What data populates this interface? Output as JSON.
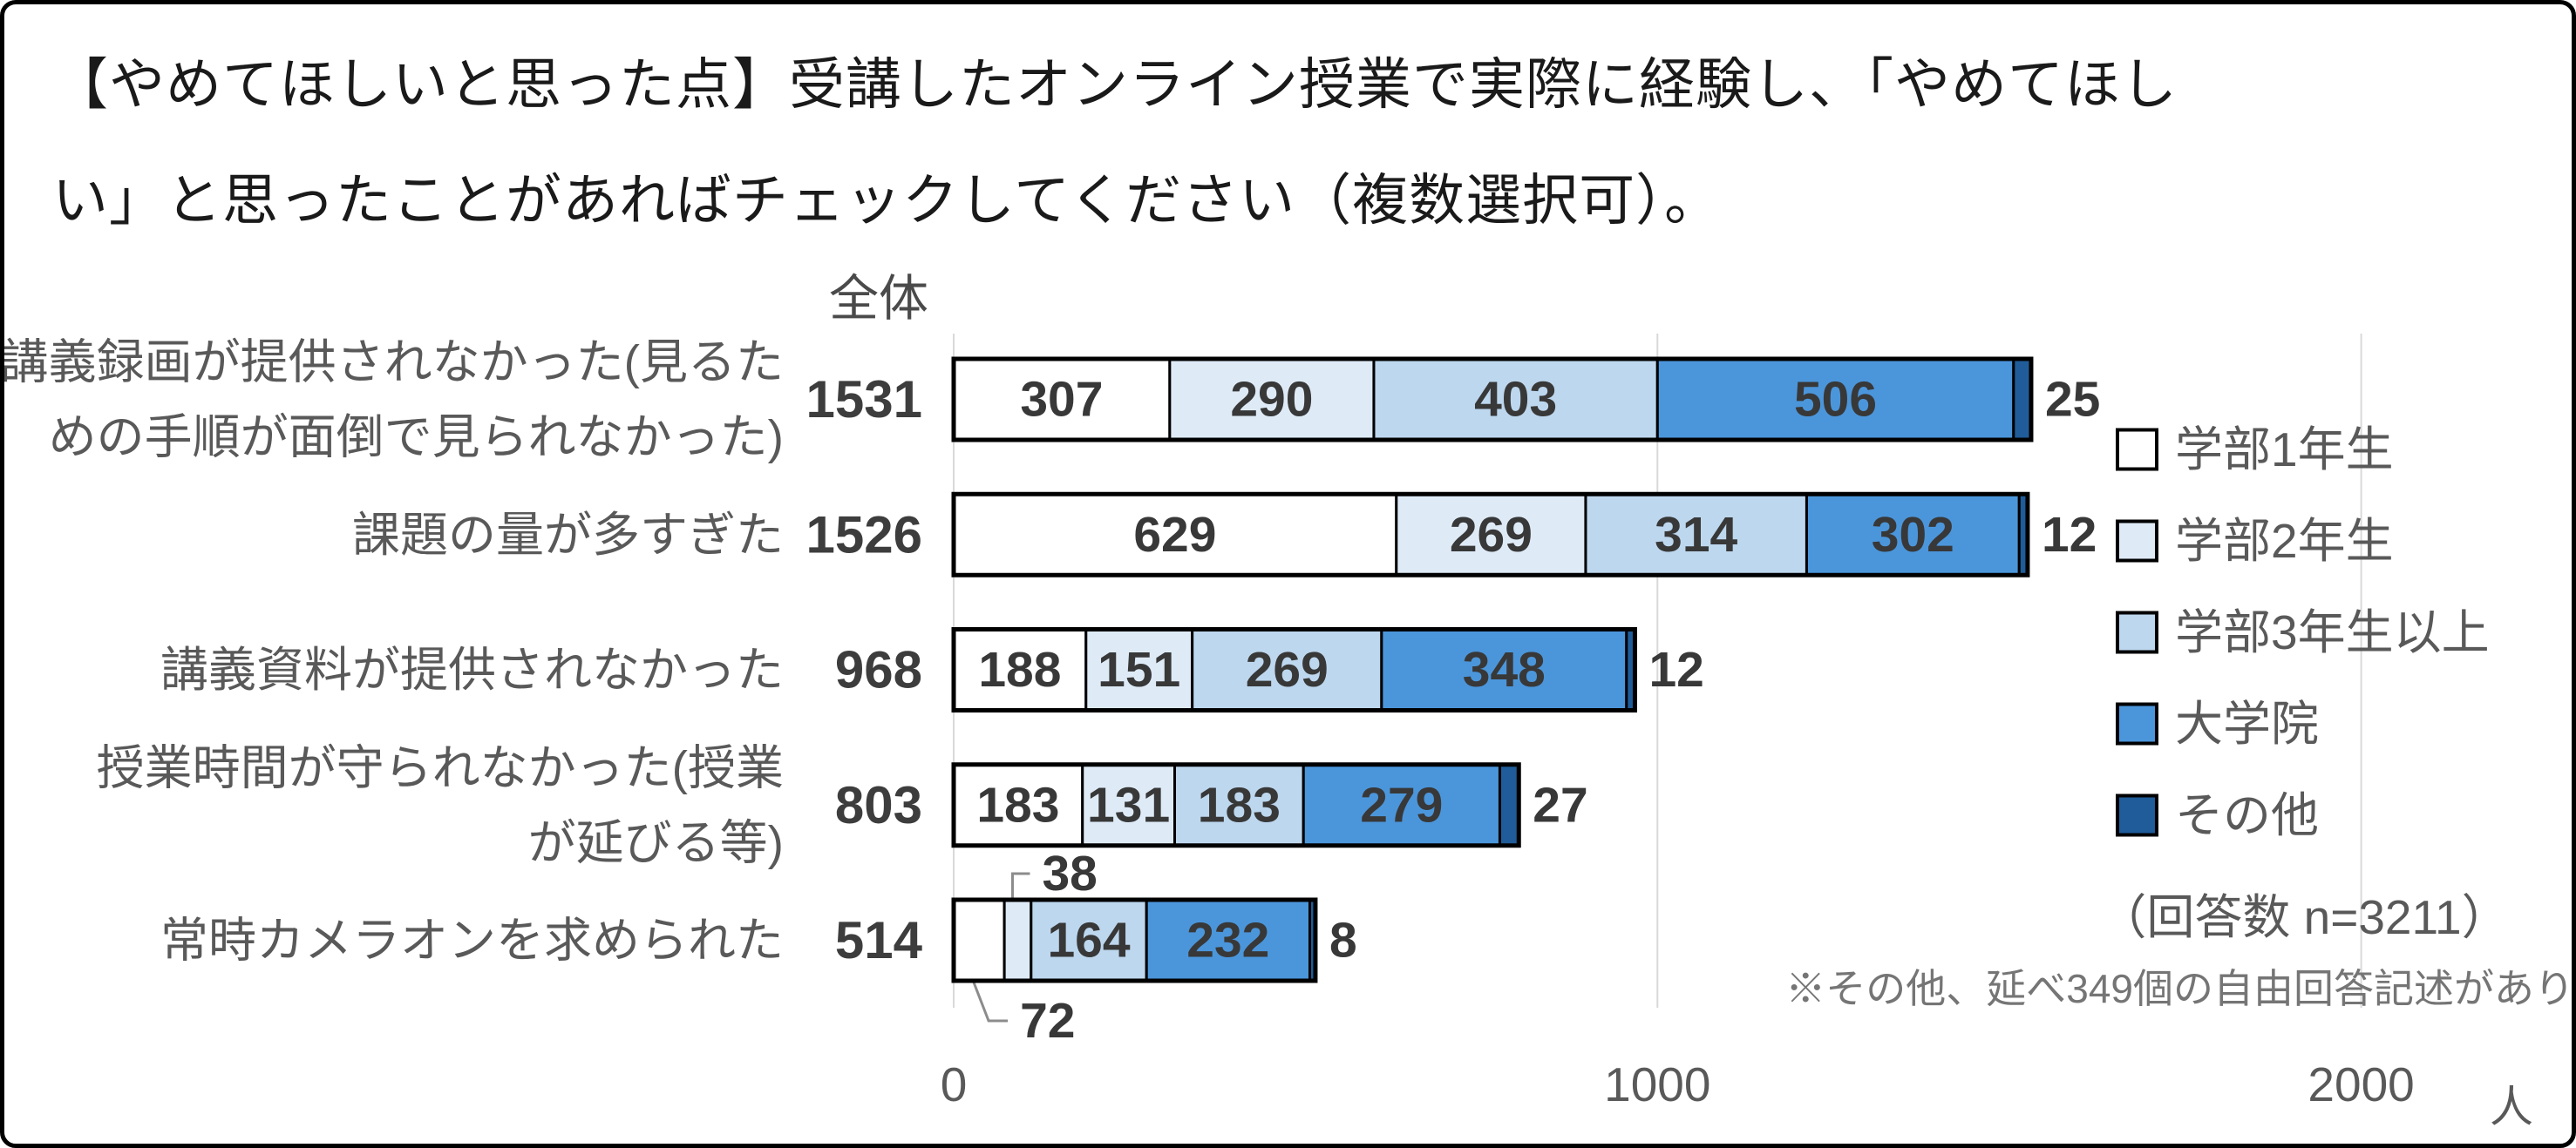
{
  "figure": {
    "title_lines": [
      "【やめてほしいと思った点】受講したオンライン授業で実際に経験し、「やめてほし",
      "い」と思ったことがあればチェックしてください（複数選択可）。"
    ]
  },
  "colors": {
    "title": "#1a1a1a",
    "background": "#FFFFFF",
    "figure_border": "#000000",
    "bar_border": "#000000",
    "gridline": "#D9D9D9",
    "leader_line": "#8C8C8C",
    "category_label": "#595959",
    "total_header": "#4A4A4A",
    "total_label": "#3D3D3D",
    "value_label": "#383838",
    "axis_text": "#595959",
    "legend_text": "#595959",
    "annotation_text": "#595959",
    "footnote_text": "#757575"
  },
  "chart_data": {
    "type": "bar",
    "orientation": "horizontal",
    "stacked": true,
    "grid": true,
    "legend_position": "right",
    "total_column_header": "全体",
    "series": [
      {
        "name": "学部1年生",
        "color": "#FFFFFF"
      },
      {
        "name": "学部2年生",
        "color": "#DEEBF7"
      },
      {
        "name": "学部3年生以上",
        "color": "#BDD7EE"
      },
      {
        "name": "大学院",
        "color": "#4B96DB"
      },
      {
        "name": "その他",
        "color": "#1F5C99"
      }
    ],
    "categories": [
      {
        "label_lines": [
          "講義録画が提供されなかった(見るた",
          "めの手順が面倒で見られなかった)"
        ],
        "total": 1531,
        "values": [
          307,
          290,
          403,
          506,
          25
        ]
      },
      {
        "label_lines": [
          "課題の量が多すぎた"
        ],
        "total": 1526,
        "values": [
          629,
          269,
          314,
          302,
          12
        ]
      },
      {
        "label_lines": [
          "講義資料が提供されなかった"
        ],
        "total": 968,
        "values": [
          188,
          151,
          269,
          348,
          12
        ]
      },
      {
        "label_lines": [
          "授業時間が守られなかった(授業",
          "が延びる等)"
        ],
        "total": 803,
        "values": [
          183,
          131,
          183,
          279,
          27
        ]
      },
      {
        "label_lines": [
          "常時カメラオンを求められた"
        ],
        "total": 514,
        "values": [
          72,
          38,
          164,
          232,
          8
        ]
      }
    ],
    "callouts": [
      {
        "row": 4,
        "segment": 1,
        "position": "above",
        "value": 38
      },
      {
        "row": 4,
        "segment": 0,
        "position": "below",
        "value": 72
      }
    ],
    "x_ticks": [
      0,
      1000,
      2000
    ],
    "xlim": [
      0,
      2200
    ],
    "xlabel_unit": "人",
    "annotations": {
      "respondents": "（回答数 n=3211）",
      "footnote": "※その他、延べ349個の自由回答記述があり"
    }
  }
}
